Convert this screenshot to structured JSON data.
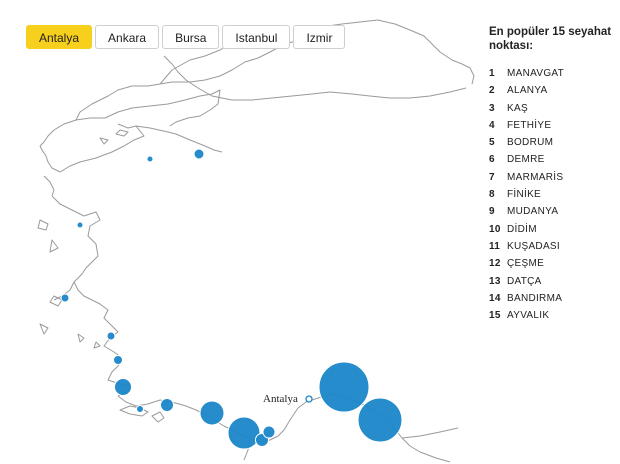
{
  "tabs": [
    {
      "label": "Antalya",
      "active": true
    },
    {
      "label": "Ankara",
      "active": false
    },
    {
      "label": "Bursa",
      "active": false
    },
    {
      "label": "Istanbul",
      "active": false
    },
    {
      "label": "Izmir",
      "active": false
    }
  ],
  "sidebar": {
    "title": "En popüler 15 seyahat noktası:",
    "items": [
      {
        "rank": "1",
        "name": "MANAVGAT"
      },
      {
        "rank": "2",
        "name": "ALANYA"
      },
      {
        "rank": "3",
        "name": "KAŞ"
      },
      {
        "rank": "4",
        "name": "FETHİYE"
      },
      {
        "rank": "5",
        "name": "BODRUM"
      },
      {
        "rank": "6",
        "name": "DEMRE"
      },
      {
        "rank": "7",
        "name": "MARMARİS"
      },
      {
        "rank": "8",
        "name": "FİNİKE"
      },
      {
        "rank": "9",
        "name": "MUDANYA"
      },
      {
        "rank": "10",
        "name": "DİDİM"
      },
      {
        "rank": "11",
        "name": "KUŞADASI"
      },
      {
        "rank": "12",
        "name": "ÇEŞME"
      },
      {
        "rank": "13",
        "name": "DATÇA"
      },
      {
        "rank": "14",
        "name": "BANDIRMA"
      },
      {
        "rank": "15",
        "name": "AYVALIK"
      }
    ]
  },
  "map": {
    "origin_label": "Antalya",
    "bubble_color": "#1a86c9",
    "coast_color": "#9a9a9a",
    "active_tab_color": "#f7cf1d"
  }
}
